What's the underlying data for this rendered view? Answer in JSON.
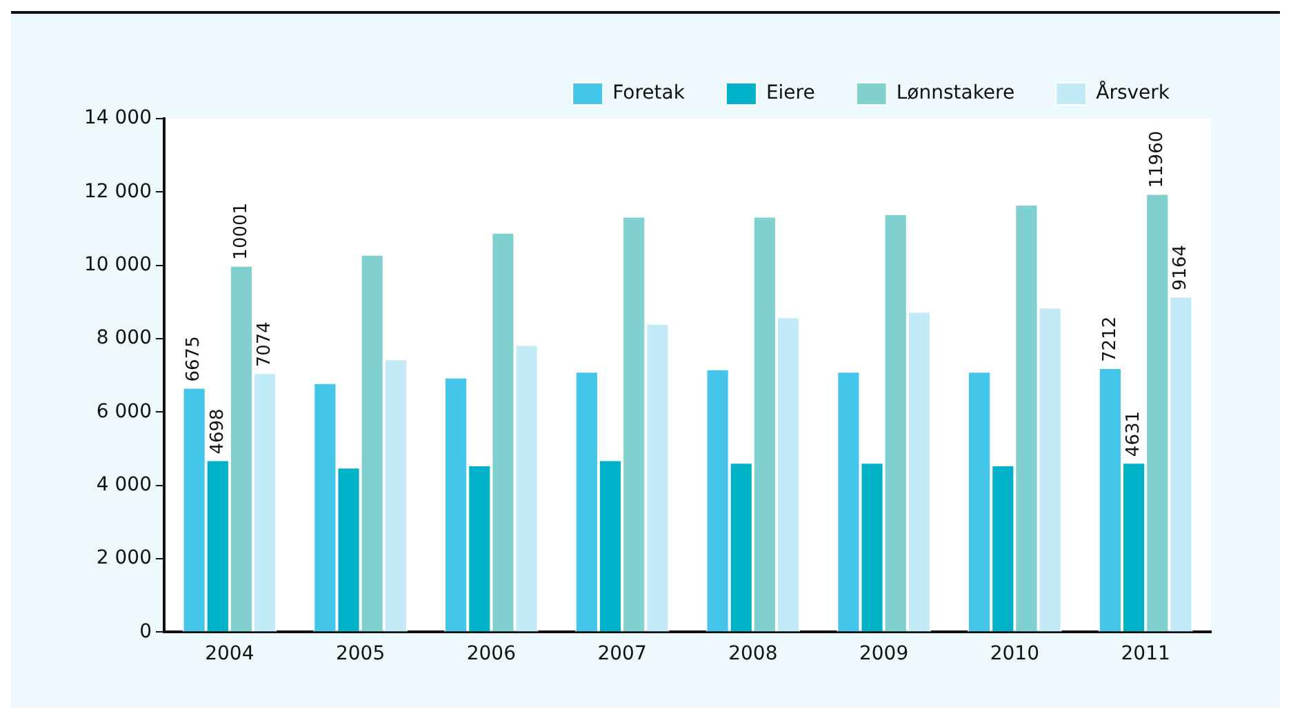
{
  "chart_data": {
    "type": "bar",
    "categories": [
      "2004",
      "2005",
      "2006",
      "2007",
      "2008",
      "2009",
      "2010",
      "2011"
    ],
    "series": [
      {
        "name": "Foretak",
        "color": "#43c6ea",
        "values": [
          6675,
          6800,
          6950,
          7110,
          7180,
          7110,
          7110,
          7212
        ],
        "value_labels": [
          "6675",
          null,
          null,
          null,
          null,
          null,
          null,
          "7212"
        ]
      },
      {
        "name": "Eiere",
        "color": "#00b2c8",
        "values": [
          4698,
          4500,
          4560,
          4700,
          4630,
          4630,
          4560,
          4631
        ],
        "value_labels": [
          "4698",
          null,
          null,
          null,
          null,
          null,
          null,
          "4631"
        ]
      },
      {
        "name": "Lønnstakere",
        "color": "#80d0d0",
        "values": [
          10001,
          10300,
          10900,
          11340,
          11340,
          11410,
          11670,
          11960
        ],
        "value_labels": [
          "10001",
          null,
          null,
          null,
          null,
          null,
          null,
          "11960"
        ]
      },
      {
        "name": "Årsverk",
        "color": "#c2eaf7",
        "values": [
          7074,
          7450,
          7840,
          8420,
          8600,
          8750,
          8860,
          9164
        ],
        "value_labels": [
          "7074",
          null,
          null,
          null,
          null,
          null,
          null,
          "9164"
        ]
      }
    ],
    "ylim": [
      0,
      14000
    ],
    "yticks": [
      {
        "value": 0,
        "label": "0"
      },
      {
        "value": 2000,
        "label": "2 000"
      },
      {
        "value": 4000,
        "label": "4 000"
      },
      {
        "value": 6000,
        "label": "6 000"
      },
      {
        "value": 8000,
        "label": "8 000"
      },
      {
        "value": 10000,
        "label": "10 000"
      },
      {
        "value": 12000,
        "label": "12 000"
      },
      {
        "value": 14000,
        "label": "14 000"
      }
    ],
    "grid": false,
    "legend": "top right"
  }
}
